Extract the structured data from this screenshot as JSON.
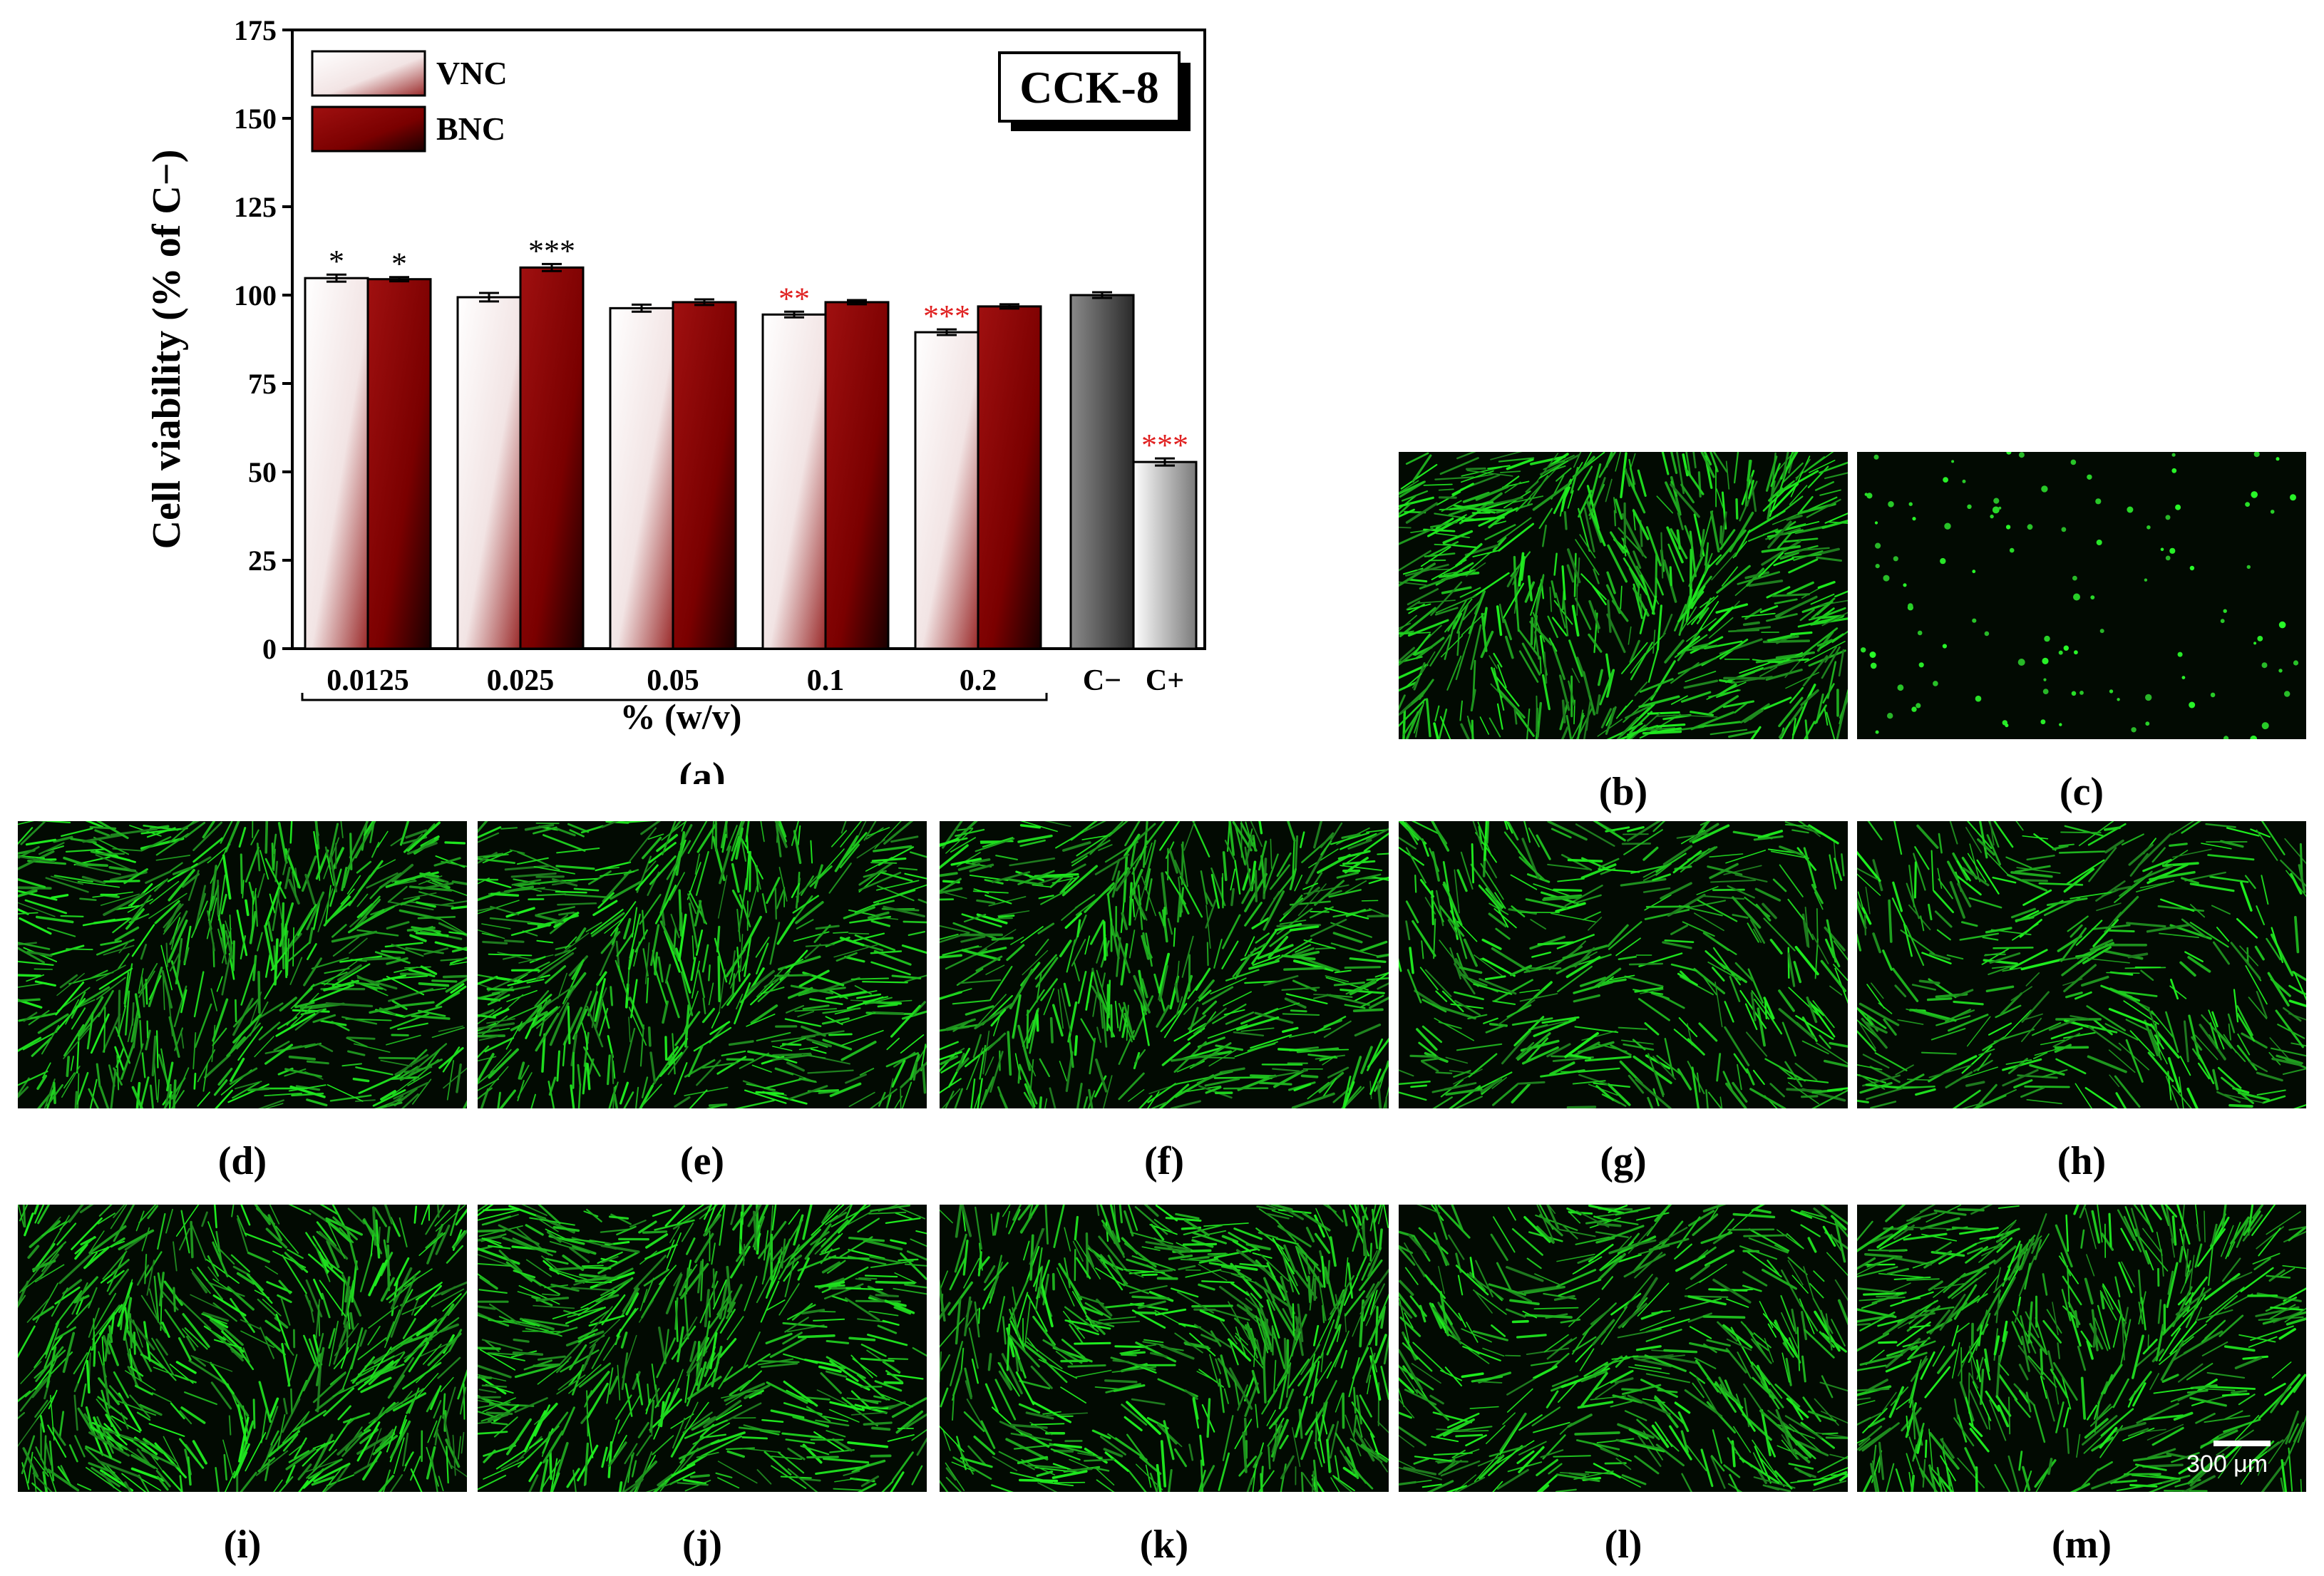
{
  "chart_data": {
    "type": "bar",
    "title": "",
    "inset_label": "CCK-8",
    "ylabel": "Cell viability (% of C−)",
    "xlabel": "% (w/v)",
    "ylim": [
      0,
      175
    ],
    "yticks": [
      0,
      25,
      50,
      75,
      100,
      125,
      150,
      175
    ],
    "categories": [
      "0.0125",
      "0.025",
      "0.05",
      "0.1",
      "0.2"
    ],
    "series": [
      {
        "name": "VNC",
        "values": [
          104.8,
          99.4,
          96.3,
          94.5,
          89.5
        ],
        "errors": [
          1.0,
          1.2,
          1.0,
          0.8,
          0.8
        ],
        "sig": [
          "*",
          "",
          "",
          "**",
          "***"
        ],
        "sig_colors": [
          "#000000",
          "#000000",
          "#000000",
          "#e02020",
          "#e02020"
        ]
      },
      {
        "name": "BNC",
        "values": [
          104.5,
          107.8,
          98.0,
          98.0,
          96.8
        ],
        "errors": [
          0.6,
          1.0,
          0.8,
          0.6,
          0.6
        ],
        "sig": [
          "*",
          "***",
          "",
          "",
          ""
        ],
        "sig_colors": [
          "#000000",
          "#000000",
          "#000000",
          "#000000",
          "#000000"
        ]
      }
    ],
    "controls": [
      {
        "label": "C−",
        "value": 100.0,
        "error": 0.8,
        "sig": "",
        "sig_color": "#000000"
      },
      {
        "label": "C+",
        "value": 52.8,
        "error": 1.0,
        "sig": "***",
        "sig_color": "#e02020"
      }
    ],
    "legend_position": "top-left",
    "colors": {
      "vnc": "#f7eeee",
      "bnc": "#8b0000",
      "control_neg": "#6a6a6a",
      "sig_red": "#e02020"
    }
  },
  "figure": {
    "panel_a_label": "(a)",
    "panels": [
      {
        "label": "(b)",
        "density": 0.95,
        "shape": "elongated"
      },
      {
        "label": "(c)",
        "density": 0.12,
        "shape": "round"
      },
      {
        "label": "(d)",
        "density": 0.9,
        "shape": "elongated"
      },
      {
        "label": "(e)",
        "density": 0.85,
        "shape": "elongated"
      },
      {
        "label": "(f)",
        "density": 0.85,
        "shape": "elongated"
      },
      {
        "label": "(g)",
        "density": 0.65,
        "shape": "elongated"
      },
      {
        "label": "(h)",
        "density": 0.6,
        "shape": "elongated"
      },
      {
        "label": "(i)",
        "density": 0.9,
        "shape": "elongated"
      },
      {
        "label": "(j)",
        "density": 0.9,
        "shape": "elongated"
      },
      {
        "label": "(k)",
        "density": 0.9,
        "shape": "elongated"
      },
      {
        "label": "(l)",
        "density": 0.75,
        "shape": "elongated"
      },
      {
        "label": "(m)",
        "density": 0.8,
        "shape": "elongated"
      }
    ],
    "scale_bar_label": "300 μm"
  }
}
